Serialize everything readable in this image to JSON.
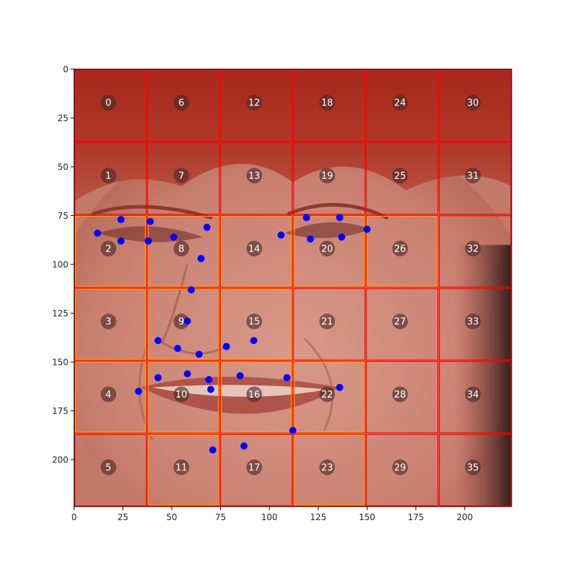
{
  "chart_data": {
    "type": "scatter",
    "title": "",
    "xlabel": "",
    "ylabel": "",
    "xlim": [
      0,
      224
    ],
    "ylim": [
      224,
      0
    ],
    "y_inverted": true,
    "grid": false,
    "background": "face image",
    "xticks": [
      0,
      25,
      50,
      75,
      100,
      125,
      150,
      175,
      200
    ],
    "yticks": [
      0,
      25,
      50,
      75,
      100,
      125,
      150,
      175,
      200
    ],
    "grid_cells": {
      "rows": 6,
      "cols": 6,
      "cell_size": 37.33,
      "labels": [
        "0",
        "1",
        "2",
        "3",
        "4",
        "5",
        "6",
        "7",
        "8",
        "9",
        "10",
        "11",
        "12",
        "13",
        "14",
        "15",
        "16",
        "17",
        "18",
        "19",
        "20",
        "21",
        "22",
        "23",
        "24",
        "25",
        "26",
        "27",
        "28",
        "29",
        "30",
        "31",
        "32",
        "33",
        "34",
        "35"
      ],
      "highlighted": [
        2,
        3,
        4,
        8,
        9,
        10,
        11,
        14,
        15,
        16,
        20,
        22,
        23,
        26
      ],
      "grid_color": "#ff0000",
      "highlight_color": "#ffa500"
    },
    "series": [
      {
        "color": "#0000ff",
        "points": [
          [
            12,
            84
          ],
          [
            24,
            77
          ],
          [
            24,
            88
          ],
          [
            38,
            88
          ],
          [
            39,
            78
          ],
          [
            51,
            86
          ],
          [
            68,
            81
          ],
          [
            65,
            97
          ],
          [
            106,
            85
          ],
          [
            119,
            76
          ],
          [
            121,
            87
          ],
          [
            136,
            76
          ],
          [
            137,
            86
          ],
          [
            150,
            82
          ],
          [
            60,
            113
          ],
          [
            58,
            129
          ],
          [
            43,
            139
          ],
          [
            53,
            143
          ],
          [
            64,
            146
          ],
          [
            78,
            142
          ],
          [
            92,
            139
          ],
          [
            33,
            165
          ],
          [
            43,
            158
          ],
          [
            58,
            156
          ],
          [
            69,
            159
          ],
          [
            70,
            164
          ],
          [
            85,
            157
          ],
          [
            109,
            158
          ],
          [
            136,
            163
          ],
          [
            112,
            185
          ],
          [
            71,
            195
          ],
          [
            87,
            193
          ]
        ]
      }
    ]
  },
  "colors": {
    "hair": "#a53020",
    "skin": "#c47a6a",
    "axis": "#000000"
  }
}
